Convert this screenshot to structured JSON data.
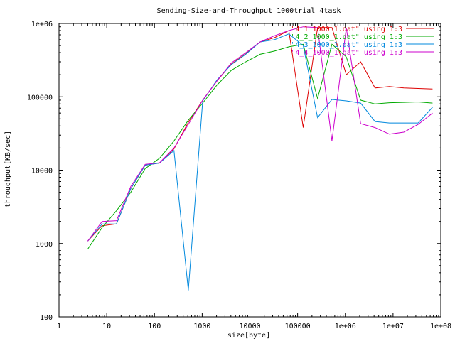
{
  "chart_data": {
    "type": "line",
    "title": "Sending-Size-and-Throughput 1000trial 4task",
    "xlabel": "size[byte]",
    "ylabel": "throughput[KB/sec]",
    "x_scale": "log",
    "y_scale": "log",
    "xlim": [
      1,
      100000000
    ],
    "ylim": [
      100,
      1000000
    ],
    "legend_position": "top-right",
    "grid": false,
    "x_ticks": [
      {
        "value": 1,
        "label": "1"
      },
      {
        "value": 10,
        "label": "10"
      },
      {
        "value": 100,
        "label": "100"
      },
      {
        "value": 1000,
        "label": "1000"
      },
      {
        "value": 10000,
        "label": "10000"
      },
      {
        "value": 100000,
        "label": "100000"
      },
      {
        "value": 1000000,
        "label": "1e+06"
      },
      {
        "value": 10000000,
        "label": "1e+07"
      },
      {
        "value": 100000000,
        "label": "1e+08"
      }
    ],
    "y_ticks": [
      {
        "value": 100,
        "label": "100"
      },
      {
        "value": 1000,
        "label": "1000"
      },
      {
        "value": 10000,
        "label": "10000"
      },
      {
        "value": 100000,
        "label": "100000"
      },
      {
        "value": 1000000,
        "label": "1e+06"
      }
    ],
    "x": [
      4,
      8,
      16,
      32,
      64,
      128,
      256,
      512,
      1024,
      2048,
      4096,
      8192,
      16384,
      32768,
      65536,
      131072,
      262144,
      524288,
      1048576,
      2097152,
      4194304,
      8388608,
      16777216,
      33554432,
      67108864
    ],
    "series": [
      {
        "name": "\"4_1_1000_1.dat\" using 1:3",
        "color": "#dd0000",
        "values": [
          1080,
          1750,
          1850,
          5600,
          11700,
          12500,
          19500,
          45000,
          90000,
          165000,
          280000,
          385000,
          560000,
          640000,
          800000,
          38000,
          880000,
          880000,
          200000,
          300000,
          132000,
          138000,
          132000,
          130000,
          128000
        ]
      },
      {
        "name": "\"4_2_1000_1.dat\" using 1:3",
        "color": "#00aa00",
        "values": [
          840,
          1650,
          2800,
          5000,
          10500,
          14500,
          25000,
          48000,
          82000,
          145000,
          230000,
          300000,
          380000,
          420000,
          480000,
          520000,
          95000,
          520000,
          350000,
          90000,
          80000,
          83000,
          84000,
          85000,
          82000
        ]
      },
      {
        "name": "\"4_3_1000_1.dat\" using 1:3",
        "color": "#0088dd",
        "values": [
          1080,
          1850,
          1850,
          5600,
          11700,
          12500,
          18500,
          230,
          88000,
          170000,
          275000,
          380000,
          560000,
          600000,
          720000,
          500000,
          52000,
          92000,
          88000,
          82000,
          46000,
          44000,
          44000,
          44000,
          72000
        ]
      },
      {
        "name": "\"4_4_1000_1.dat\" using 1:3",
        "color": "#cc00cc",
        "values": [
          1080,
          2000,
          2050,
          6000,
          12000,
          12600,
          20000,
          42000,
          90000,
          165000,
          290000,
          400000,
          560000,
          680000,
          800000,
          900000,
          880000,
          25000,
          870000,
          43000,
          38000,
          31000,
          33000,
          42000,
          60000
        ]
      }
    ]
  }
}
